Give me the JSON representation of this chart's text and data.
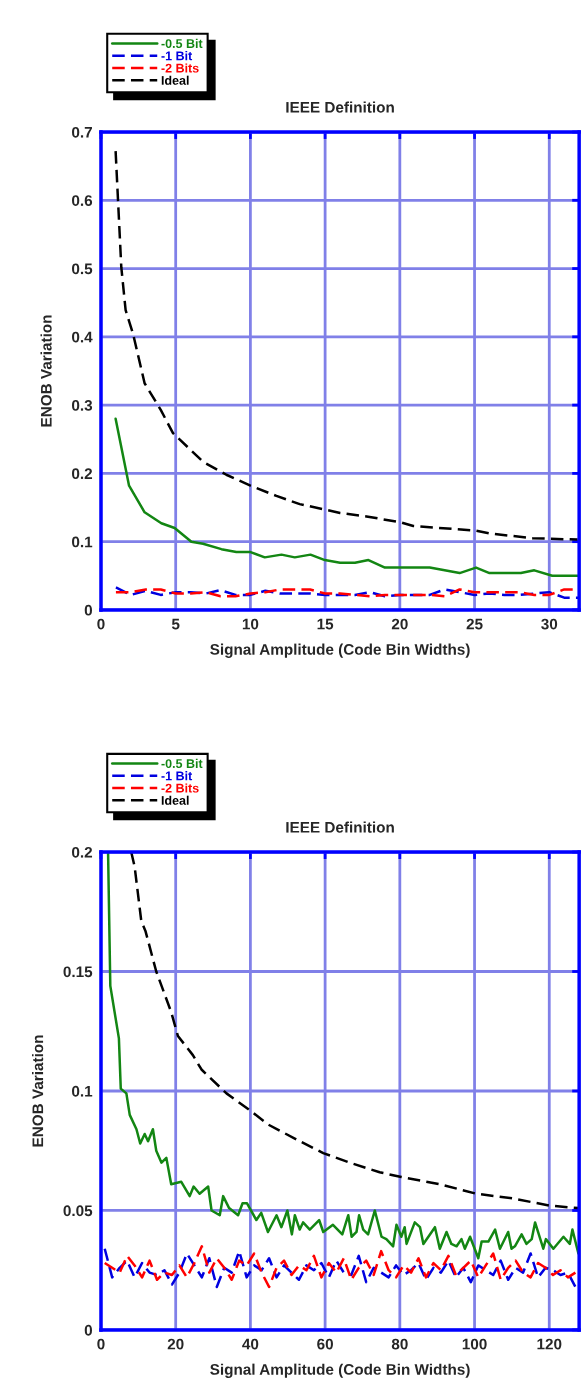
{
  "chart_data": [
    {
      "type": "line",
      "title": "IEEE Definition",
      "xlabel": "Signal Amplitude (Code Bin Widths)",
      "ylabel": "ENOB Variation",
      "xlim": [
        0,
        32
      ],
      "ylim": [
        0,
        0.7
      ],
      "xticks": [
        0,
        5,
        10,
        15,
        20,
        25,
        30
      ],
      "yticks": [
        0,
        0.1,
        0.2,
        0.3,
        0.4,
        0.5,
        0.6,
        0.7
      ],
      "grid": true,
      "legend": "top left",
      "series": [
        {
          "name": "-0.5 Bit",
          "color": "#138613",
          "line_style": "solid",
          "x": [
            0.98,
            1.88,
            2.92,
            4.04,
            4.93,
            6.05,
            6.83,
            8.06,
            9.06,
            9.96,
            10.96,
            12.08,
            12.97,
            14.02,
            14.98,
            16,
            17,
            17.9,
            19,
            22,
            24,
            25.1,
            26,
            28.1,
            29,
            30.2,
            31.9
          ],
          "values": [
            0.28,
            0.182,
            0.143,
            0.127,
            0.12,
            0.1,
            0.097,
            0.089,
            0.085,
            0.085,
            0.077,
            0.081,
            0.077,
            0.081,
            0.073,
            0.069,
            0.069,
            0.073,
            0.062,
            0.062,
            0.054,
            0.062,
            0.054,
            0.054,
            0.058,
            0.05,
            0.05
          ]
        },
        {
          "name": "-1 Bit",
          "color": "#0000e0",
          "line_style": "dashed",
          "x": [
            1,
            2,
            3,
            4,
            5,
            6,
            7,
            8,
            9,
            10,
            11,
            12,
            13,
            14,
            15,
            16,
            17,
            18,
            19,
            20,
            21,
            22,
            23,
            24,
            25,
            26,
            27,
            28,
            29,
            30,
            31,
            32
          ],
          "values": [
            0.033,
            0.022,
            0.028,
            0.022,
            0.026,
            0.026,
            0.024,
            0.029,
            0.022,
            0.022,
            0.028,
            0.024,
            0.024,
            0.024,
            0.022,
            0.022,
            0.022,
            0.026,
            0.02,
            0.022,
            0.022,
            0.022,
            0.03,
            0.026,
            0.022,
            0.024,
            0.022,
            0.022,
            0.024,
            0.026,
            0.018,
            0.018
          ]
        },
        {
          "name": "-2 Bits",
          "color": "#ff0000",
          "line_style": "dashed",
          "x": [
            1,
            2,
            3,
            4,
            5,
            6,
            7,
            8,
            9,
            10,
            11,
            12,
            13,
            14,
            15,
            16,
            17,
            18,
            19,
            20,
            21,
            22,
            23,
            24,
            25,
            26,
            27,
            28,
            29,
            30,
            31,
            32
          ],
          "values": [
            0.026,
            0.026,
            0.03,
            0.03,
            0.024,
            0.024,
            0.026,
            0.02,
            0.02,
            0.024,
            0.026,
            0.03,
            0.03,
            0.03,
            0.024,
            0.024,
            0.022,
            0.02,
            0.022,
            0.022,
            0.022,
            0.022,
            0.02,
            0.03,
            0.026,
            0.026,
            0.026,
            0.026,
            0.022,
            0.022,
            0.03,
            0.03
          ]
        },
        {
          "name": "Ideal",
          "color": "#000000",
          "line_style": "dashed",
          "x": [
            0.98,
            1.36,
            1.65,
            2.14,
            2.92,
            4.0,
            4.82,
            6.83,
            8.39,
            10,
            11.74,
            13.3,
            14.98,
            16,
            17.77,
            20.1,
            20.9,
            25.1,
            26,
            28.9,
            31.9
          ],
          "values": [
            0.672,
            0.502,
            0.439,
            0.405,
            0.332,
            0.293,
            0.259,
            0.217,
            0.198,
            0.182,
            0.167,
            0.155,
            0.147,
            0.142,
            0.137,
            0.128,
            0.123,
            0.116,
            0.112,
            0.105,
            0.103
          ]
        }
      ]
    },
    {
      "type": "line",
      "title": "IEEE Definition",
      "xlabel": "Signal Amplitude (Code Bin Widths)",
      "ylabel": "ENOB Variation",
      "xlim": [
        0,
        128
      ],
      "ylim": [
        0,
        0.2
      ],
      "xticks": [
        0,
        20,
        40,
        60,
        80,
        100,
        120
      ],
      "yticks": [
        0,
        0.05,
        0.1,
        0.15,
        0.2
      ],
      "grid": true,
      "legend": "top left",
      "series": [
        {
          "name": "-0.5 Bit",
          "color": "#138613",
          "line_style": "solid",
          "x": [
            1.9,
            2.5,
            4.8,
            5.3,
            6.8,
            7.7,
            9.5,
            10.5,
            11.7,
            12.6,
            13.9,
            14.8,
            16.2,
            17.5,
            18.8,
            21.5,
            23.75,
            24.8,
            26.4,
            28.7,
            29.6,
            31.8,
            32.7,
            34.3,
            36.7,
            37.9,
            39.1,
            41.6,
            42.9,
            44.7,
            47,
            48.3,
            49.9,
            51.1,
            51.9,
            53.2,
            54.1,
            55.9,
            58.4,
            59.5,
            62.1,
            64.6,
            66.2,
            67.1,
            68.4,
            69.1,
            70.2,
            71.5,
            73.3,
            75.1,
            76.4,
            78.2,
            79.1,
            80.4,
            81.3,
            81.8,
            84,
            85.4,
            86.3,
            89.4,
            90.7,
            92.5,
            93.8,
            95.2,
            96.5,
            97.4,
            98.8,
            101,
            101.9,
            103.7,
            105.5,
            106.8,
            109,
            109.9,
            110.8,
            112.6,
            113.9,
            115.3,
            116.2,
            118.4,
            119.1,
            121.1,
            123.8,
            125.5,
            126.2,
            127.8
          ],
          "values": [
            0.2,
            0.144,
            0.122,
            0.101,
            0.099,
            0.09,
            0.084,
            0.078,
            0.082,
            0.079,
            0.084,
            0.075,
            0.07,
            0.072,
            0.061,
            0.062,
            0.056,
            0.06,
            0.057,
            0.06,
            0.05,
            0.048,
            0.056,
            0.051,
            0.048,
            0.053,
            0.053,
            0.046,
            0.049,
            0.041,
            0.048,
            0.043,
            0.05,
            0.04,
            0.048,
            0.042,
            0.045,
            0.042,
            0.046,
            0.041,
            0.044,
            0.04,
            0.048,
            0.039,
            0.041,
            0.048,
            0.042,
            0.04,
            0.05,
            0.039,
            0.038,
            0.035,
            0.044,
            0.039,
            0.043,
            0.036,
            0.045,
            0.043,
            0.036,
            0.043,
            0.034,
            0.041,
            0.036,
            0.035,
            0.038,
            0.034,
            0.039,
            0.03,
            0.037,
            0.037,
            0.042,
            0.034,
            0.041,
            0.034,
            0.035,
            0.04,
            0.036,
            0.038,
            0.045,
            0.034,
            0.038,
            0.034,
            0.039,
            0.036,
            0.042,
            0.032
          ]
        },
        {
          "name": "-1 Bit",
          "color": "#0000e0",
          "line_style": "dashed",
          "x": [
            1,
            3,
            5,
            7,
            9,
            11,
            13,
            15,
            17,
            19,
            21,
            23,
            25,
            27,
            29,
            31,
            33,
            35,
            37,
            39,
            41,
            43,
            45,
            47,
            49,
            51,
            53,
            55,
            57,
            59,
            61,
            63,
            65,
            67,
            69,
            71,
            73,
            75,
            77,
            79,
            81,
            83,
            85,
            87,
            89,
            91,
            93,
            95,
            97,
            99,
            101,
            103,
            105,
            107,
            109,
            111,
            113,
            115,
            117,
            119,
            121,
            123,
            125,
            127
          ],
          "values": [
            0.034,
            0.022,
            0.026,
            0.029,
            0.022,
            0.028,
            0.024,
            0.023,
            0.025,
            0.019,
            0.024,
            0.032,
            0.027,
            0.022,
            0.03,
            0.018,
            0.026,
            0.024,
            0.033,
            0.022,
            0.027,
            0.025,
            0.03,
            0.022,
            0.027,
            0.024,
            0.021,
            0.027,
            0.025,
            0.028,
            0.022,
            0.029,
            0.024,
            0.023,
            0.031,
            0.02,
            0.026,
            0.024,
            0.022,
            0.027,
            0.023,
            0.025,
            0.028,
            0.021,
            0.026,
            0.024,
            0.029,
            0.022,
            0.026,
            0.02,
            0.027,
            0.025,
            0.023,
            0.029,
            0.021,
            0.026,
            0.024,
            0.032,
            0.022,
            0.026,
            0.025,
            0.023,
            0.024,
            0.018
          ]
        },
        {
          "name": "-2 Bits",
          "color": "#ff0000",
          "line_style": "dashed",
          "x": [
            1,
            3,
            5,
            7,
            9,
            11,
            13,
            15,
            17,
            19,
            21,
            23,
            25,
            27,
            29,
            31,
            33,
            35,
            37,
            39,
            41,
            43,
            45,
            47,
            49,
            51,
            53,
            55,
            57,
            59,
            61,
            63,
            65,
            67,
            69,
            71,
            73,
            75,
            77,
            79,
            81,
            83,
            85,
            87,
            89,
            91,
            93,
            95,
            97,
            99,
            101,
            103,
            105,
            107,
            109,
            111,
            113,
            115,
            117,
            119,
            121,
            123,
            125,
            127
          ],
          "values": [
            0.028,
            0.026,
            0.024,
            0.031,
            0.027,
            0.022,
            0.029,
            0.021,
            0.024,
            0.023,
            0.027,
            0.022,
            0.028,
            0.035,
            0.024,
            0.03,
            0.026,
            0.021,
            0.029,
            0.027,
            0.032,
            0.024,
            0.018,
            0.026,
            0.029,
            0.023,
            0.027,
            0.025,
            0.031,
            0.022,
            0.028,
            0.024,
            0.03,
            0.021,
            0.026,
            0.029,
            0.023,
            0.033,
            0.025,
            0.022,
            0.027,
            0.024,
            0.03,
            0.022,
            0.028,
            0.025,
            0.031,
            0.023,
            0.026,
            0.029,
            0.022,
            0.027,
            0.032,
            0.021,
            0.026,
            0.029,
            0.024,
            0.022,
            0.028,
            0.026,
            0.023,
            0.025,
            0.022,
            0.024
          ]
        },
        {
          "name": "Ideal",
          "color": "#000000",
          "line_style": "dashed",
          "x": [
            8.1,
            9,
            10.8,
            11.9,
            14.8,
            18.8,
            20.6,
            24.6,
            26.9,
            33.6,
            39.8,
            44.7,
            53.2,
            59.5,
            66.6,
            74.6,
            80.4,
            90.7,
            100.5,
            110.4,
            120.2,
            127.8
          ],
          "values": [
            0.2,
            0.194,
            0.171,
            0.167,
            0.15,
            0.133,
            0.123,
            0.115,
            0.109,
            0.099,
            0.092,
            0.086,
            0.079,
            0.074,
            0.07,
            0.066,
            0.064,
            0.061,
            0.057,
            0.055,
            0.052,
            0.051
          ]
        }
      ]
    }
  ]
}
